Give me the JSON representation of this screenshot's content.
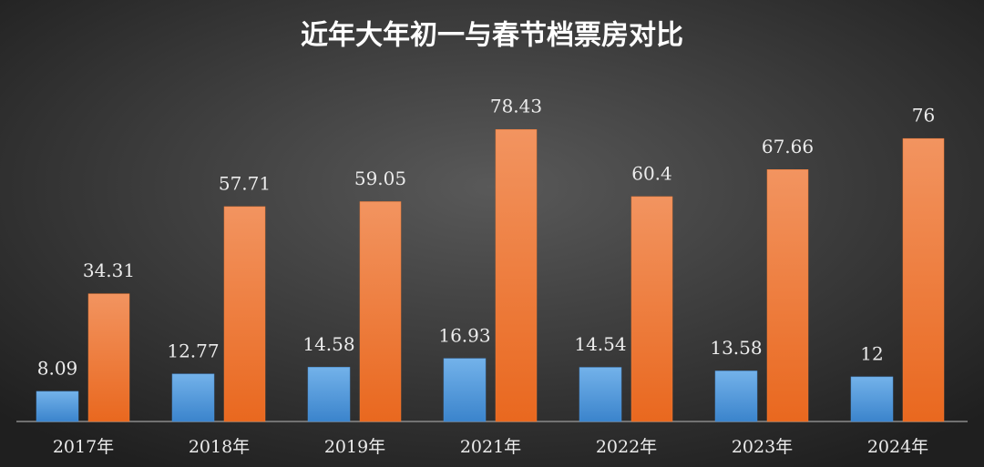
{
  "chart_data": {
    "type": "bar",
    "title": "近年大年初一与春节档票房对比",
    "categories": [
      "2017年",
      "2018年",
      "2019年",
      "2021年",
      "2022年",
      "2023年",
      "2024年"
    ],
    "series": [
      {
        "color": "#4a90d6",
        "values": [
          8.09,
          12.77,
          14.58,
          16.93,
          14.54,
          13.58,
          12
        ]
      },
      {
        "color": "#ee7a35",
        "values": [
          34.31,
          57.71,
          59.05,
          78.43,
          60.4,
          67.66,
          76
        ]
      }
    ]
  }
}
